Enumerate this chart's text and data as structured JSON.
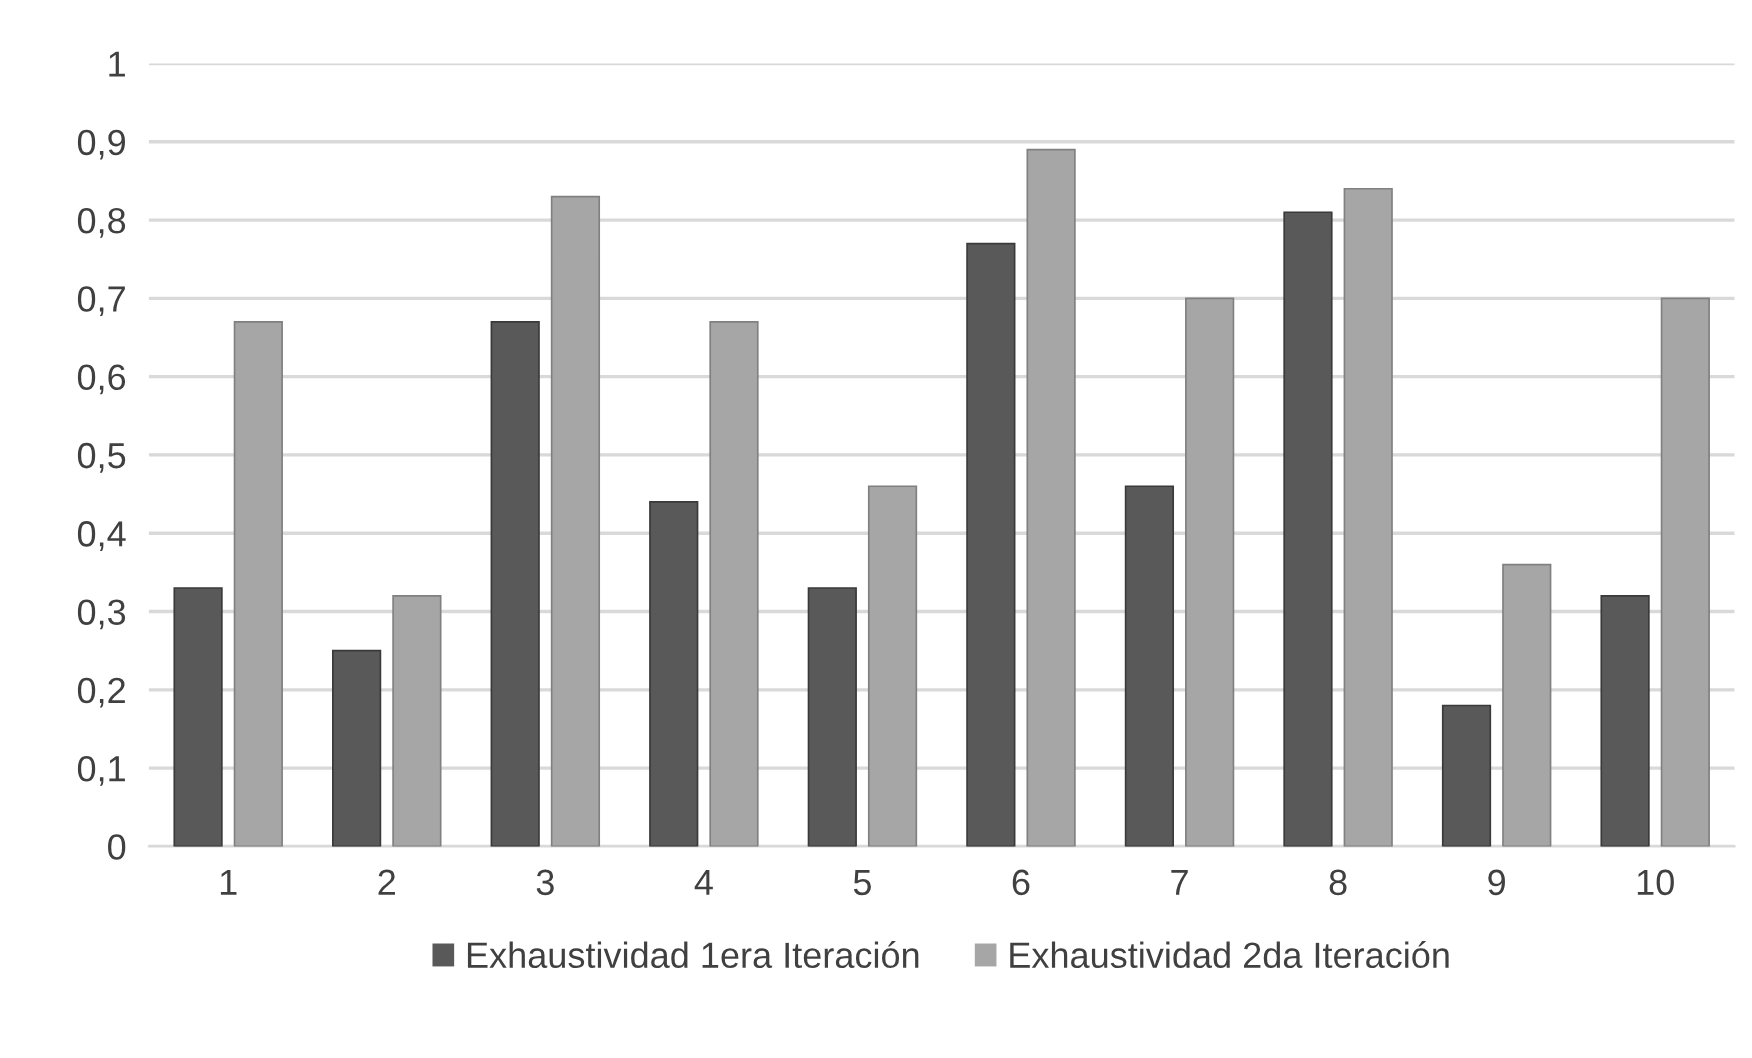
{
  "chart_data": {
    "type": "bar",
    "categories": [
      "1",
      "2",
      "3",
      "4",
      "5",
      "6",
      "7",
      "8",
      "9",
      "10"
    ],
    "series": [
      {
        "name": "Exhaustividad 1era Iteración",
        "color": "#595959",
        "values": [
          0.33,
          0.25,
          0.67,
          0.44,
          0.33,
          0.77,
          0.46,
          0.81,
          0.18,
          0.32
        ]
      },
      {
        "name": "Exhaustividad 2da Iteración",
        "color": "#a6a6a6",
        "values": [
          0.67,
          0.32,
          0.83,
          0.67,
          0.46,
          0.89,
          0.7,
          0.84,
          0.36,
          0.7
        ]
      }
    ],
    "ylim": [
      0,
      1
    ],
    "yticks": [
      {
        "value": 0,
        "label": "0"
      },
      {
        "value": 0.1,
        "label": "0,1"
      },
      {
        "value": 0.2,
        "label": "0,2"
      },
      {
        "value": 0.3,
        "label": "0,3"
      },
      {
        "value": 0.4,
        "label": "0,4"
      },
      {
        "value": 0.5,
        "label": "0,5"
      },
      {
        "value": 0.6,
        "label": "0,6"
      },
      {
        "value": 0.7,
        "label": "0,7"
      },
      {
        "value": 0.8,
        "label": "0,8"
      },
      {
        "value": 0.9,
        "label": "0,9"
      },
      {
        "value": 1,
        "label": "1"
      }
    ],
    "grid": "y",
    "legend": "bottom"
  }
}
